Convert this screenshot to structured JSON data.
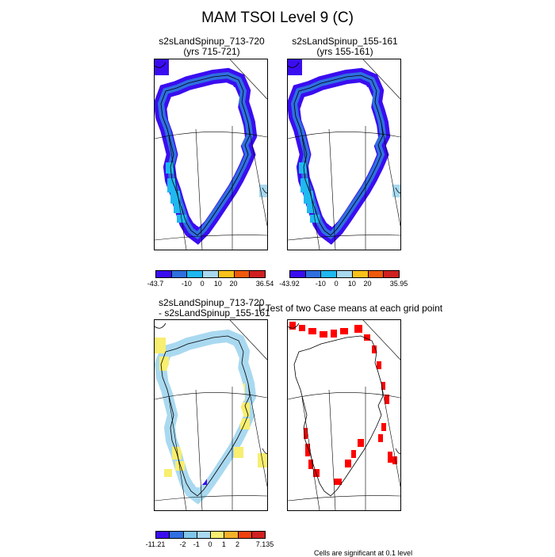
{
  "title": "MAM TSOI Level 9 (C)",
  "panels": [
    {
      "line1": "s2sLandSpinup_713-720",
      "line2": "(yrs 715-721)"
    },
    {
      "line1": "s2sLandSpinup_155-161",
      "line2": "(yrs 155-161)"
    },
    {
      "line1": "s2sLandSpinup_713-720",
      "line2": "- s2sLandSpinup_155-161"
    },
    {
      "line1": "T-Test of two Case means at each grid point",
      "line2": ""
    }
  ],
  "colorbars": {
    "abs1": {
      "colors": [
        "#3a0df0",
        "#2f6fe0",
        "#1fb8f0",
        "#a9d9f0",
        "#f8c21a",
        "#f05a0c",
        "#d02020"
      ],
      "labels": [
        "-43.7",
        "-10",
        "0",
        "10",
        "20",
        "36.54"
      ]
    },
    "abs2": {
      "colors": [
        "#3a0df0",
        "#2f6fe0",
        "#1fb8f0",
        "#a9d9f0",
        "#f8c21a",
        "#f05a0c",
        "#d02020"
      ],
      "labels": [
        "-43.92",
        "-10",
        "0",
        "10",
        "20",
        "35.95"
      ]
    },
    "diff": {
      "colors": [
        "#3a0df0",
        "#2f6fe0",
        "#7fc6ea",
        "#a9d9f0",
        "#f8ee70",
        "#f6b12a",
        "#f04010",
        "#d02020"
      ],
      "labels": [
        "-11.21",
        "-2",
        "-1",
        "0",
        "1",
        "2",
        "7.135"
      ]
    }
  },
  "footnote": "Cells are significant at 0.1 level",
  "map_colors": {
    "ring_outer": "#3a0df0",
    "ring_inner": "#2f6fe0",
    "west_coast": "#1fb8f0",
    "east_patch": "#a9d9f0",
    "diff_blue": "#a9d9f0",
    "diff_yellow": "#f8ee70",
    "diff_purple": "#3a0df0",
    "ttest_red": "#ff0000"
  }
}
